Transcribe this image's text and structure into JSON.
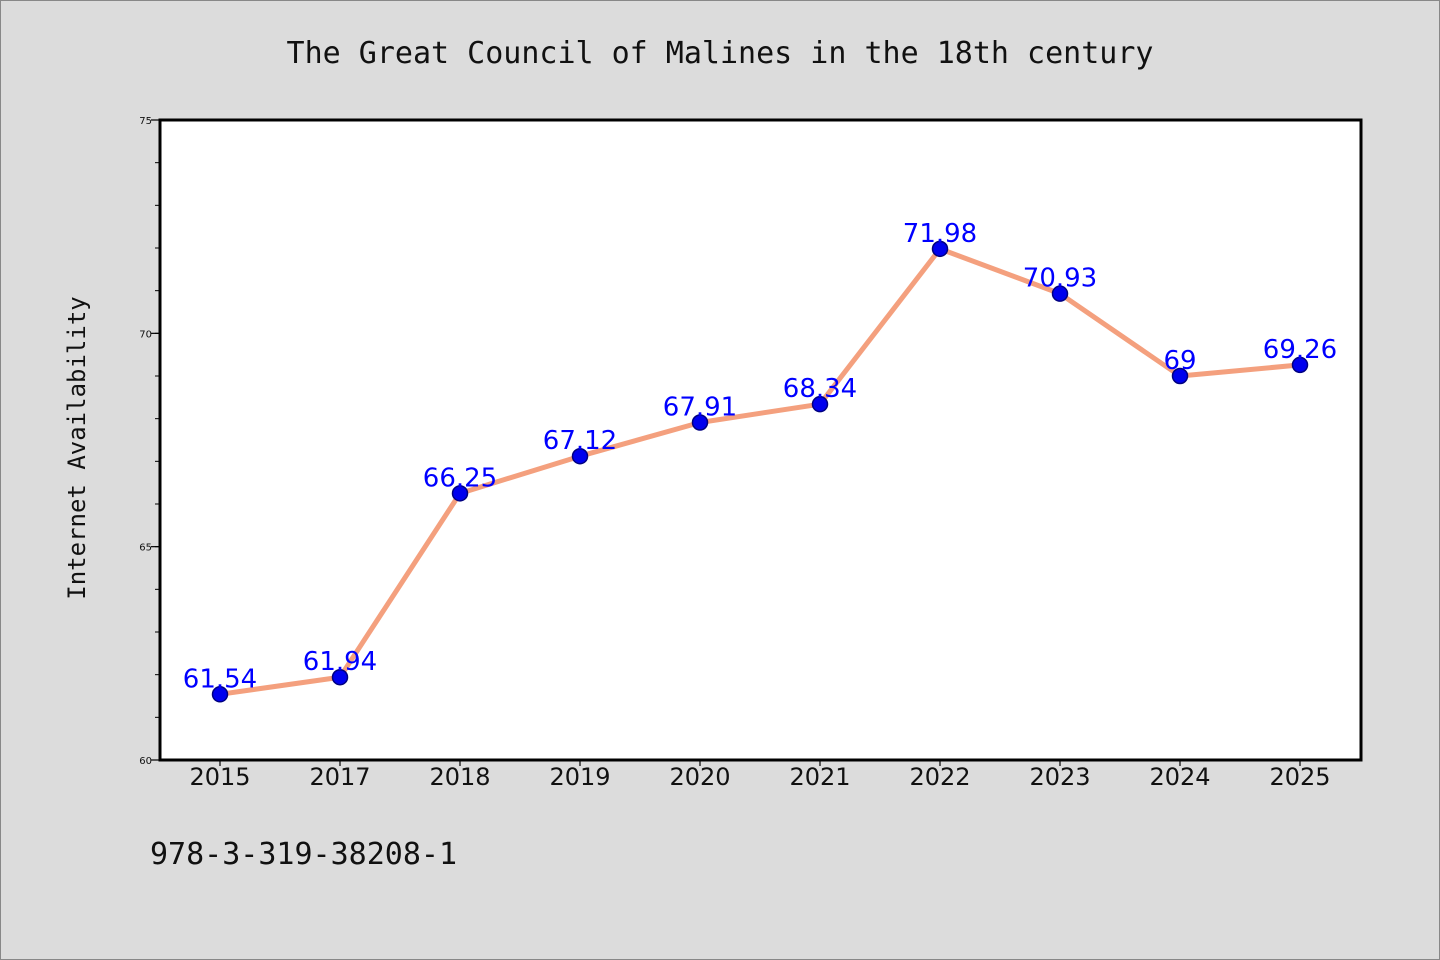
{
  "chart_data": {
    "type": "line",
    "title": "The Great Council of Malines in the 18th century",
    "xlabel": "",
    "ylabel": "Internet Availability",
    "categories": [
      "2015",
      "2017",
      "2018",
      "2019",
      "2020",
      "2021",
      "2022",
      "2023",
      "2024",
      "2025"
    ],
    "values": [
      61.54,
      61.94,
      66.25,
      67.12,
      67.91,
      68.34,
      71.98,
      70.93,
      69,
      69.26
    ],
    "data_labels": [
      "61.54",
      "61.94",
      "66.25",
      "67.12",
      "67.91",
      "68.34",
      "71.98",
      "70.93",
      "69",
      "69.26"
    ],
    "ylim": [
      60,
      75
    ],
    "y_ticks": [
      60,
      65,
      70,
      75
    ],
    "y_tick_labels": [
      "60",
      "65",
      "70",
      "75"
    ],
    "y_minor_step": 1,
    "grid": false,
    "legend": "none",
    "colors": {
      "line": "#f4a07e",
      "marker_fill": "#0000ee",
      "marker_edge": "#000080",
      "data_label": "#0000ff",
      "background": "#dcdcdc",
      "plot_background": "#ffffff"
    }
  },
  "footer_text": "978-3-319-38208-1"
}
